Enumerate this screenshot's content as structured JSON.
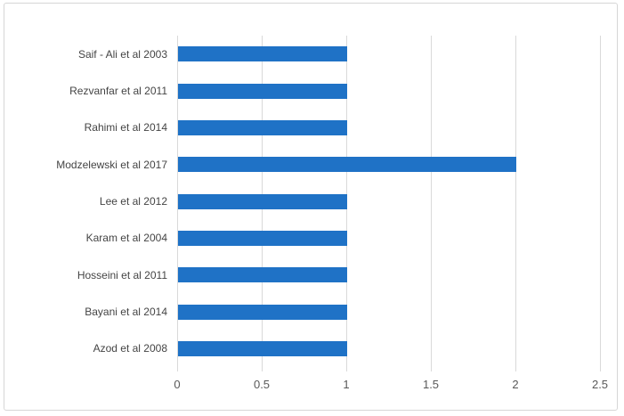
{
  "chart_data": {
    "type": "bar",
    "orientation": "horizontal",
    "title": "",
    "xlabel": "",
    "ylabel": "",
    "categories": [
      "Saif - Ali et al 2003",
      "Rezvanfar et al 2011",
      "Rahimi et al 2014",
      "Modzelewski et al 2017",
      "Lee et al 2012",
      "Karam et al 2004",
      "Hosseini et al 2011",
      "Bayani et al 2014",
      "Azod et al 2008"
    ],
    "values": [
      1,
      1,
      1,
      2,
      1,
      1,
      1,
      1,
      1
    ],
    "xlim": [
      0,
      2.5
    ],
    "x_ticks": [
      0,
      0.5,
      1,
      1.5,
      2,
      2.5
    ],
    "x_tick_labels": [
      "0",
      "0.5",
      "1",
      "1.5",
      "2",
      "2.5"
    ],
    "grid": true,
    "legend": false,
    "colors": {
      "bar": "#1f72c6",
      "gridline": "#d9d9d9",
      "tick_text": "#595959",
      "category_text": "#444444",
      "border": "#d6d6d6"
    }
  }
}
